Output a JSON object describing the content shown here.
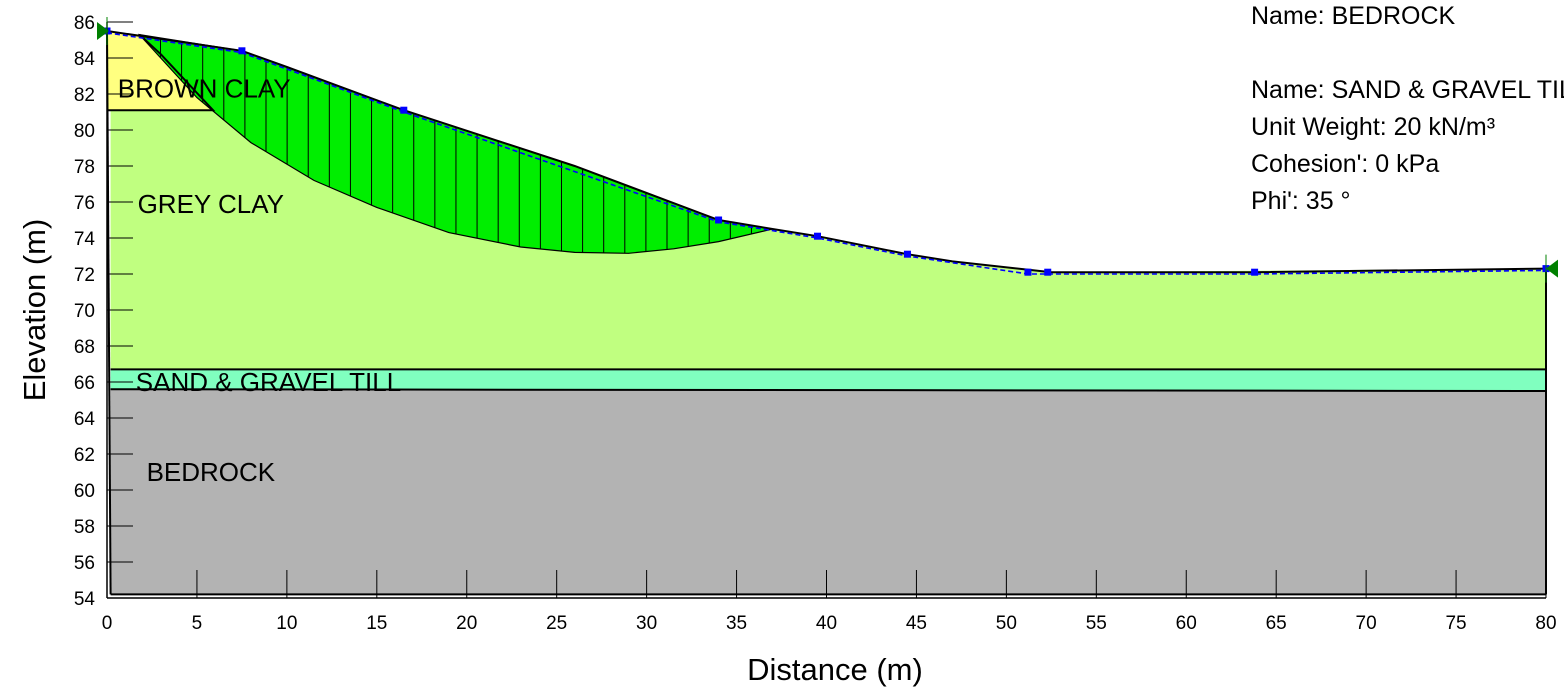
{
  "chart_data": {
    "type": "diagram",
    "xlabel": "Distance (m)",
    "ylabel": "Elevation (m)",
    "xlim": [
      0,
      80
    ],
    "ylim": [
      54,
      86
    ],
    "x_ticks": [
      0,
      5,
      10,
      15,
      20,
      25,
      30,
      35,
      40,
      45,
      50,
      55,
      60,
      65,
      70,
      75,
      80
    ],
    "y_ticks": [
      54,
      56,
      58,
      60,
      62,
      64,
      66,
      68,
      70,
      72,
      74,
      76,
      78,
      80,
      82,
      84,
      86
    ],
    "regions": [
      {
        "name": "BEDROCK",
        "label": "BEDROCK",
        "color": "#b3b3b3",
        "label_at": [
          2.2,
          60.5
        ],
        "polygon": [
          [
            0.2,
            54.2
          ],
          [
            80,
            54.2
          ],
          [
            80,
            65.5
          ],
          [
            0.2,
            65.6
          ]
        ]
      },
      {
        "name": "SAND & GRAVEL TILL",
        "label": "SAND & GRAVEL TILL",
        "color": "#80ffbf",
        "label_at": [
          1.6,
          65.5
        ],
        "polygon": [
          [
            0.2,
            65.6
          ],
          [
            80,
            65.5
          ],
          [
            80,
            66.7
          ],
          [
            0.2,
            66.7
          ]
        ]
      },
      {
        "name": "GREY CLAY",
        "label": "GREY CLAY",
        "color": "#c0ff80",
        "label_at": [
          1.7,
          75.4
        ],
        "polygon": [
          [
            0.2,
            66.7
          ],
          [
            80,
            66.7
          ],
          [
            80,
            72.3
          ],
          [
            52.5,
            72.1
          ],
          [
            47,
            72.7
          ],
          [
            44.5,
            73.1
          ],
          [
            39.5,
            74.1
          ],
          [
            37,
            74.5
          ],
          [
            34,
            75
          ],
          [
            26,
            78
          ],
          [
            16.5,
            81.1
          ],
          [
            10,
            83.5
          ],
          [
            7.5,
            84.4
          ],
          [
            1.8,
            85.3
          ],
          [
            3,
            84.2
          ],
          [
            5.9,
            81.1
          ],
          [
            0.2,
            81.1
          ]
        ]
      },
      {
        "name": "BROWN CLAY",
        "label": "BROWN CLAY",
        "color": "#ffff80",
        "label_at": [
          0.6,
          81.8
        ],
        "polygon": [
          [
            0,
            85.5
          ],
          [
            1.8,
            85.3
          ],
          [
            3,
            84.2
          ],
          [
            5.9,
            81.1
          ],
          [
            0,
            81.1
          ]
        ]
      }
    ],
    "ground_surface": [
      [
        0,
        85.5
      ],
      [
        7.5,
        84.4
      ],
      [
        10,
        83.5
      ],
      [
        16.5,
        81.1
      ],
      [
        26,
        78
      ],
      [
        34,
        75
      ],
      [
        37,
        74.5
      ],
      [
        39.5,
        74.1
      ],
      [
        44.5,
        73.1
      ],
      [
        47,
        72.7
      ],
      [
        52.5,
        72.1
      ],
      [
        63.8,
        72.1
      ],
      [
        80,
        72.3
      ]
    ],
    "piezometric_line": [
      [
        0,
        85.4
      ],
      [
        7.5,
        84.3
      ],
      [
        16.5,
        81.0
      ],
      [
        34,
        74.9
      ],
      [
        39.5,
        74.0
      ],
      [
        44.5,
        73.0
      ],
      [
        51.2,
        72.0
      ],
      [
        52.3,
        72.0
      ],
      [
        63.8,
        72.0
      ],
      [
        80,
        72.2
      ]
    ],
    "piezometric_points": [
      [
        0,
        85.5
      ],
      [
        7.5,
        84.4
      ],
      [
        16.5,
        81.1
      ],
      [
        34,
        75
      ],
      [
        39.5,
        74.1
      ],
      [
        44.5,
        73.1
      ],
      [
        51.2,
        72.1
      ],
      [
        52.3,
        72.1
      ],
      [
        63.8,
        72.1
      ],
      [
        80,
        72.3
      ]
    ],
    "slip_surface": [
      [
        1.8,
        85.3
      ],
      [
        5,
        81.8
      ],
      [
        8,
        79.3
      ],
      [
        11.5,
        77.2
      ],
      [
        15,
        75.7
      ],
      [
        19,
        74.3
      ],
      [
        23,
        73.5
      ],
      [
        26,
        73.2
      ],
      [
        29,
        73.15
      ],
      [
        31.5,
        73.4
      ],
      [
        34,
        73.8
      ],
      [
        37,
        74.5
      ]
    ],
    "slice_count": 30,
    "support_markers": [
      [
        0,
        85.5
      ],
      [
        80,
        72.3
      ]
    ],
    "info_panel": [
      "Name: BEDROCK",
      "",
      "Name: SAND & GRAVEL TILL",
      "Unit Weight: 20 kN/m³",
      "Cohesion': 0 kPa",
      "Phi': 35 °"
    ],
    "colors": {
      "slip_mass": "#00ee00",
      "boundary": "#000000",
      "water_line": "#0000ff",
      "support": "#008000"
    }
  }
}
